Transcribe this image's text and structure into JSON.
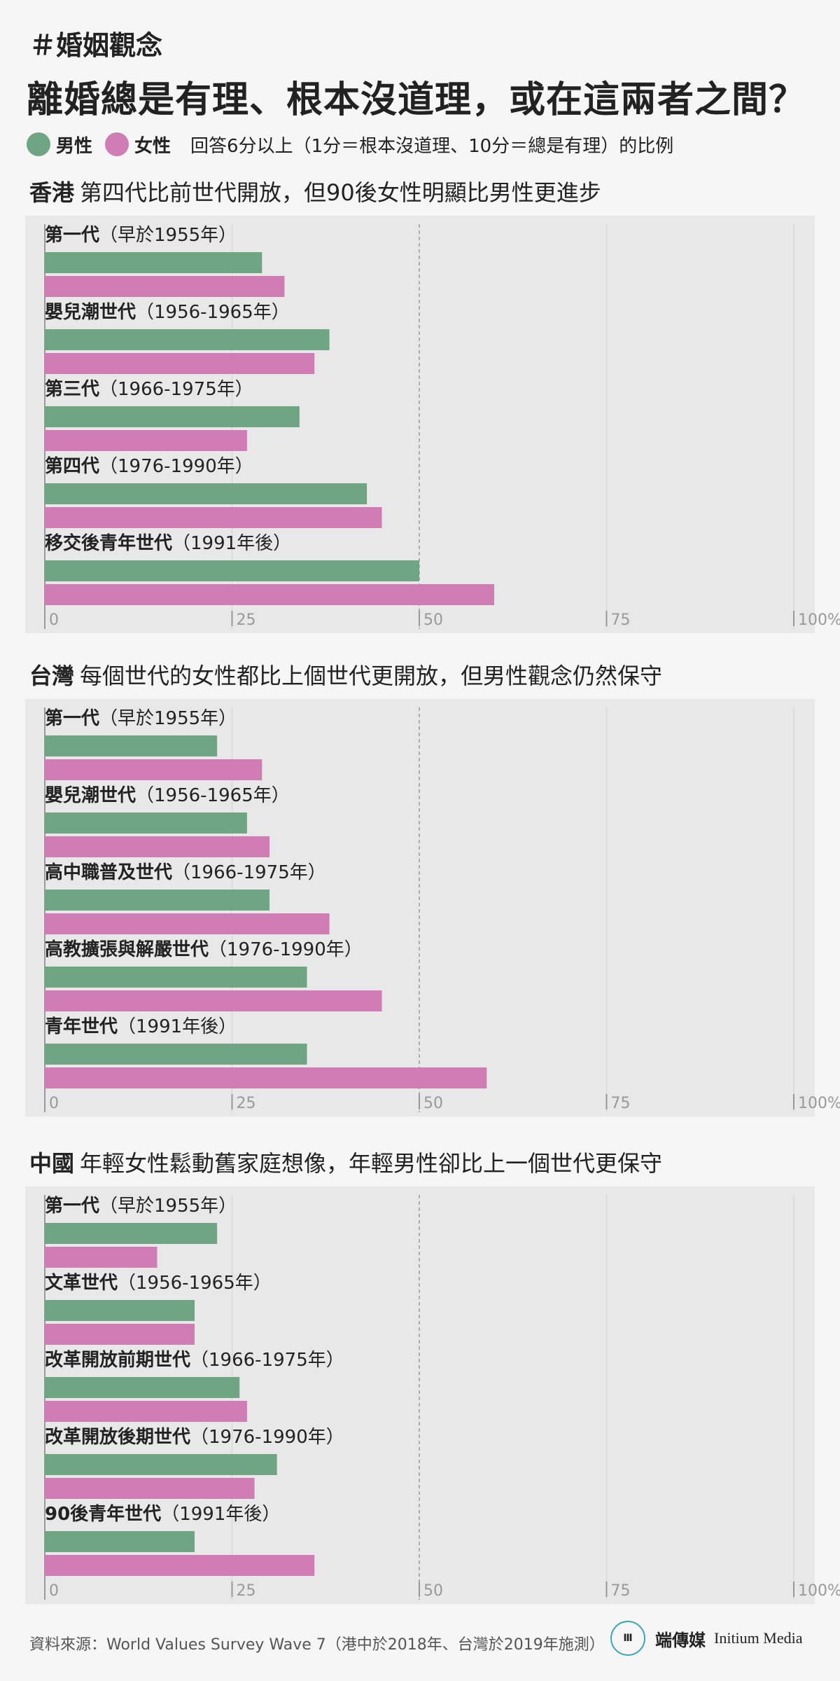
{
  "header": {
    "hashtag": "＃婚姻觀念",
    "title": "離婚總是有理、根本沒道理，或在這兩者之間？"
  },
  "legend": {
    "male_label": "男性",
    "female_label": "女性",
    "note": "回答6分以上（1分＝根本沒道理、10分＝總是有理）的比例",
    "male_color": "#6fa582",
    "female_color": "#cf7db4"
  },
  "footer": {
    "source": "資料來源：World Values Survey Wave 7（港中於2018年、台灣於2019年施測）",
    "logo_mark": "Ⅲ",
    "logo_cn": "端傳媒",
    "logo_en": "Initium Media"
  },
  "chart_data": [
    {
      "type": "bar",
      "region": "香港",
      "subtitle": "第四代比前世代開放，但90後女性明顯比男性更進步",
      "categories": [
        {
          "name": "第一代",
          "range": "（早於1955年）"
        },
        {
          "name": "嬰兒潮世代",
          "range": "（1956-1965年）"
        },
        {
          "name": "第三代",
          "range": "（1966-1975年）"
        },
        {
          "name": "第四代",
          "range": "（1976-1990年）"
        },
        {
          "name": "移交後青年世代",
          "range": "（1991年後）"
        }
      ],
      "series": [
        {
          "name": "男性",
          "values": [
            29,
            38,
            34,
            43,
            50
          ]
        },
        {
          "name": "女性",
          "values": [
            32,
            36,
            27,
            45,
            60
          ]
        }
      ],
      "xlim": [
        0,
        100
      ],
      "xticks": [
        {
          "value": 0,
          "label": "0"
        },
        {
          "value": 25,
          "label": "25"
        },
        {
          "value": 50,
          "label": "50"
        },
        {
          "value": 75,
          "label": "75"
        },
        {
          "value": 100,
          "label": "100%"
        }
      ]
    },
    {
      "type": "bar",
      "region": "台灣",
      "subtitle": "每個世代的女性都比上個世代更開放，但男性觀念仍然保守",
      "categories": [
        {
          "name": "第一代",
          "range": "（早於1955年）"
        },
        {
          "name": "嬰兒潮世代",
          "range": "（1956-1965年）"
        },
        {
          "name": "高中職普及世代",
          "range": "（1966-1975年）"
        },
        {
          "name": "高教擴張與解嚴世代",
          "range": "（1976-1990年）"
        },
        {
          "name": "青年世代",
          "range": "（1991年後）"
        }
      ],
      "series": [
        {
          "name": "男性",
          "values": [
            23,
            27,
            30,
            35,
            35
          ]
        },
        {
          "name": "女性",
          "values": [
            29,
            30,
            38,
            45,
            59
          ]
        }
      ],
      "xlim": [
        0,
        100
      ],
      "xticks": [
        {
          "value": 0,
          "label": "0"
        },
        {
          "value": 25,
          "label": "25"
        },
        {
          "value": 50,
          "label": "50"
        },
        {
          "value": 75,
          "label": "75"
        },
        {
          "value": 100,
          "label": "100%"
        }
      ]
    },
    {
      "type": "bar",
      "region": "中國",
      "subtitle": "年輕女性鬆動舊家庭想像，年輕男性卻比上一個世代更保守",
      "categories": [
        {
          "name": "第一代",
          "range": "（早於1955年）"
        },
        {
          "name": "文革世代",
          "range": "（1956-1965年）"
        },
        {
          "name": "改革開放前期世代",
          "range": "（1966-1975年）"
        },
        {
          "name": "改革開放後期世代",
          "range": "（1976-1990年）"
        },
        {
          "name": "90後青年世代",
          "range": "（1991年後）"
        }
      ],
      "series": [
        {
          "name": "男性",
          "values": [
            23,
            20,
            26,
            31,
            20
          ]
        },
        {
          "name": "女性",
          "values": [
            15,
            20,
            27,
            28,
            36
          ]
        }
      ],
      "xlim": [
        0,
        100
      ],
      "xticks": [
        {
          "value": 0,
          "label": "0"
        },
        {
          "value": 25,
          "label": "25"
        },
        {
          "value": 50,
          "label": "50"
        },
        {
          "value": 75,
          "label": "75"
        },
        {
          "value": 100,
          "label": "100%"
        }
      ]
    }
  ]
}
